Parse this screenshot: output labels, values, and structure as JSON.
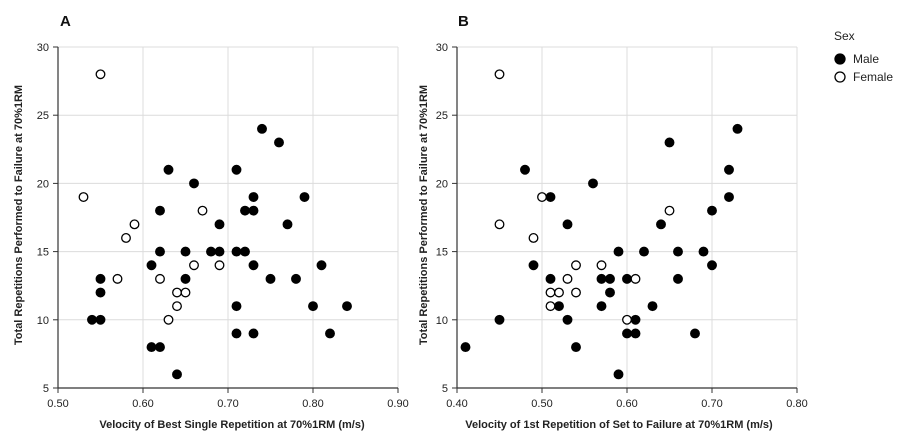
{
  "legend": {
    "title": "Sex",
    "items": [
      {
        "label": "Male",
        "color": "#000000",
        "filled": true
      },
      {
        "label": "Female",
        "color": "#ffffff",
        "filled": false
      }
    ]
  },
  "chart_data": [
    {
      "type": "scatter",
      "panel": "A",
      "xlabel": "Velocity of Best Single Repetition at 70%1RM (m/s)",
      "ylabel": "Total Repetitions Performed to Failure at 70%1RM",
      "xlim": [
        0.5,
        0.9
      ],
      "ylim": [
        5,
        30
      ],
      "xticks": [
        "0.50",
        "0.60",
        "0.70",
        "0.80",
        "0.90"
      ],
      "yticks": [
        "5",
        "10",
        "15",
        "20",
        "25",
        "30"
      ],
      "grid": true,
      "series": [
        {
          "name": "Male",
          "points": [
            [
              0.54,
              10
            ],
            [
              0.55,
              10
            ],
            [
              0.55,
              12
            ],
            [
              0.55,
              13
            ],
            [
              0.61,
              8
            ],
            [
              0.62,
              8
            ],
            [
              0.61,
              14
            ],
            [
              0.62,
              15
            ],
            [
              0.62,
              18
            ],
            [
              0.63,
              21
            ],
            [
              0.64,
              6
            ],
            [
              0.65,
              13
            ],
            [
              0.65,
              15
            ],
            [
              0.66,
              20
            ],
            [
              0.68,
              15
            ],
            [
              0.69,
              15
            ],
            [
              0.69,
              17
            ],
            [
              0.71,
              9
            ],
            [
              0.71,
              11
            ],
            [
              0.71,
              15
            ],
            [
              0.71,
              21
            ],
            [
              0.72,
              15
            ],
            [
              0.72,
              18
            ],
            [
              0.73,
              9
            ],
            [
              0.73,
              14
            ],
            [
              0.73,
              18
            ],
            [
              0.73,
              19
            ],
            [
              0.74,
              24
            ],
            [
              0.75,
              13
            ],
            [
              0.76,
              23
            ],
            [
              0.77,
              17
            ],
            [
              0.78,
              13
            ],
            [
              0.79,
              19
            ],
            [
              0.8,
              11
            ],
            [
              0.81,
              14
            ],
            [
              0.82,
              9
            ],
            [
              0.84,
              11
            ]
          ]
        },
        {
          "name": "Female",
          "points": [
            [
              0.53,
              19
            ],
            [
              0.55,
              28
            ],
            [
              0.57,
              13
            ],
            [
              0.58,
              16
            ],
            [
              0.59,
              17
            ],
            [
              0.62,
              13
            ],
            [
              0.63,
              10
            ],
            [
              0.64,
              11
            ],
            [
              0.64,
              12
            ],
            [
              0.65,
              12
            ],
            [
              0.66,
              14
            ],
            [
              0.67,
              18
            ],
            [
              0.69,
              14
            ]
          ]
        }
      ]
    },
    {
      "type": "scatter",
      "panel": "B",
      "xlabel": "Velocity of 1st Repetition of Set to Failure at 70%1RM (m/s)",
      "ylabel": "Total Repetitions Performed to Failure at 70%1RM",
      "xlim": [
        0.4,
        0.8
      ],
      "ylim": [
        5,
        30
      ],
      "xticks": [
        "0.40",
        "0.50",
        "0.60",
        "0.70",
        "0.80"
      ],
      "yticks": [
        "5",
        "10",
        "15",
        "20",
        "25",
        "30"
      ],
      "grid": true,
      "series": [
        {
          "name": "Male",
          "points": [
            [
              0.41,
              8
            ],
            [
              0.45,
              10
            ],
            [
              0.48,
              21
            ],
            [
              0.49,
              14
            ],
            [
              0.51,
              13
            ],
            [
              0.51,
              19
            ],
            [
              0.52,
              11
            ],
            [
              0.53,
              10
            ],
            [
              0.53,
              17
            ],
            [
              0.54,
              8
            ],
            [
              0.56,
              20
            ],
            [
              0.57,
              11
            ],
            [
              0.57,
              13
            ],
            [
              0.58,
              12
            ],
            [
              0.58,
              13
            ],
            [
              0.59,
              6
            ],
            [
              0.59,
              15
            ],
            [
              0.6,
              9
            ],
            [
              0.6,
              13
            ],
            [
              0.61,
              9
            ],
            [
              0.61,
              10
            ],
            [
              0.62,
              15
            ],
            [
              0.63,
              11
            ],
            [
              0.64,
              17
            ],
            [
              0.65,
              23
            ],
            [
              0.66,
              13
            ],
            [
              0.66,
              15
            ],
            [
              0.68,
              9
            ],
            [
              0.69,
              15
            ],
            [
              0.7,
              14
            ],
            [
              0.7,
              18
            ],
            [
              0.72,
              19
            ],
            [
              0.72,
              21
            ],
            [
              0.73,
              24
            ]
          ]
        },
        {
          "name": "Female",
          "points": [
            [
              0.45,
              17
            ],
            [
              0.45,
              28
            ],
            [
              0.49,
              16
            ],
            [
              0.5,
              19
            ],
            [
              0.51,
              11
            ],
            [
              0.51,
              12
            ],
            [
              0.52,
              12
            ],
            [
              0.53,
              13
            ],
            [
              0.54,
              12
            ],
            [
              0.54,
              14
            ],
            [
              0.57,
              14
            ],
            [
              0.6,
              10
            ],
            [
              0.61,
              13
            ],
            [
              0.65,
              18
            ]
          ]
        }
      ]
    }
  ]
}
